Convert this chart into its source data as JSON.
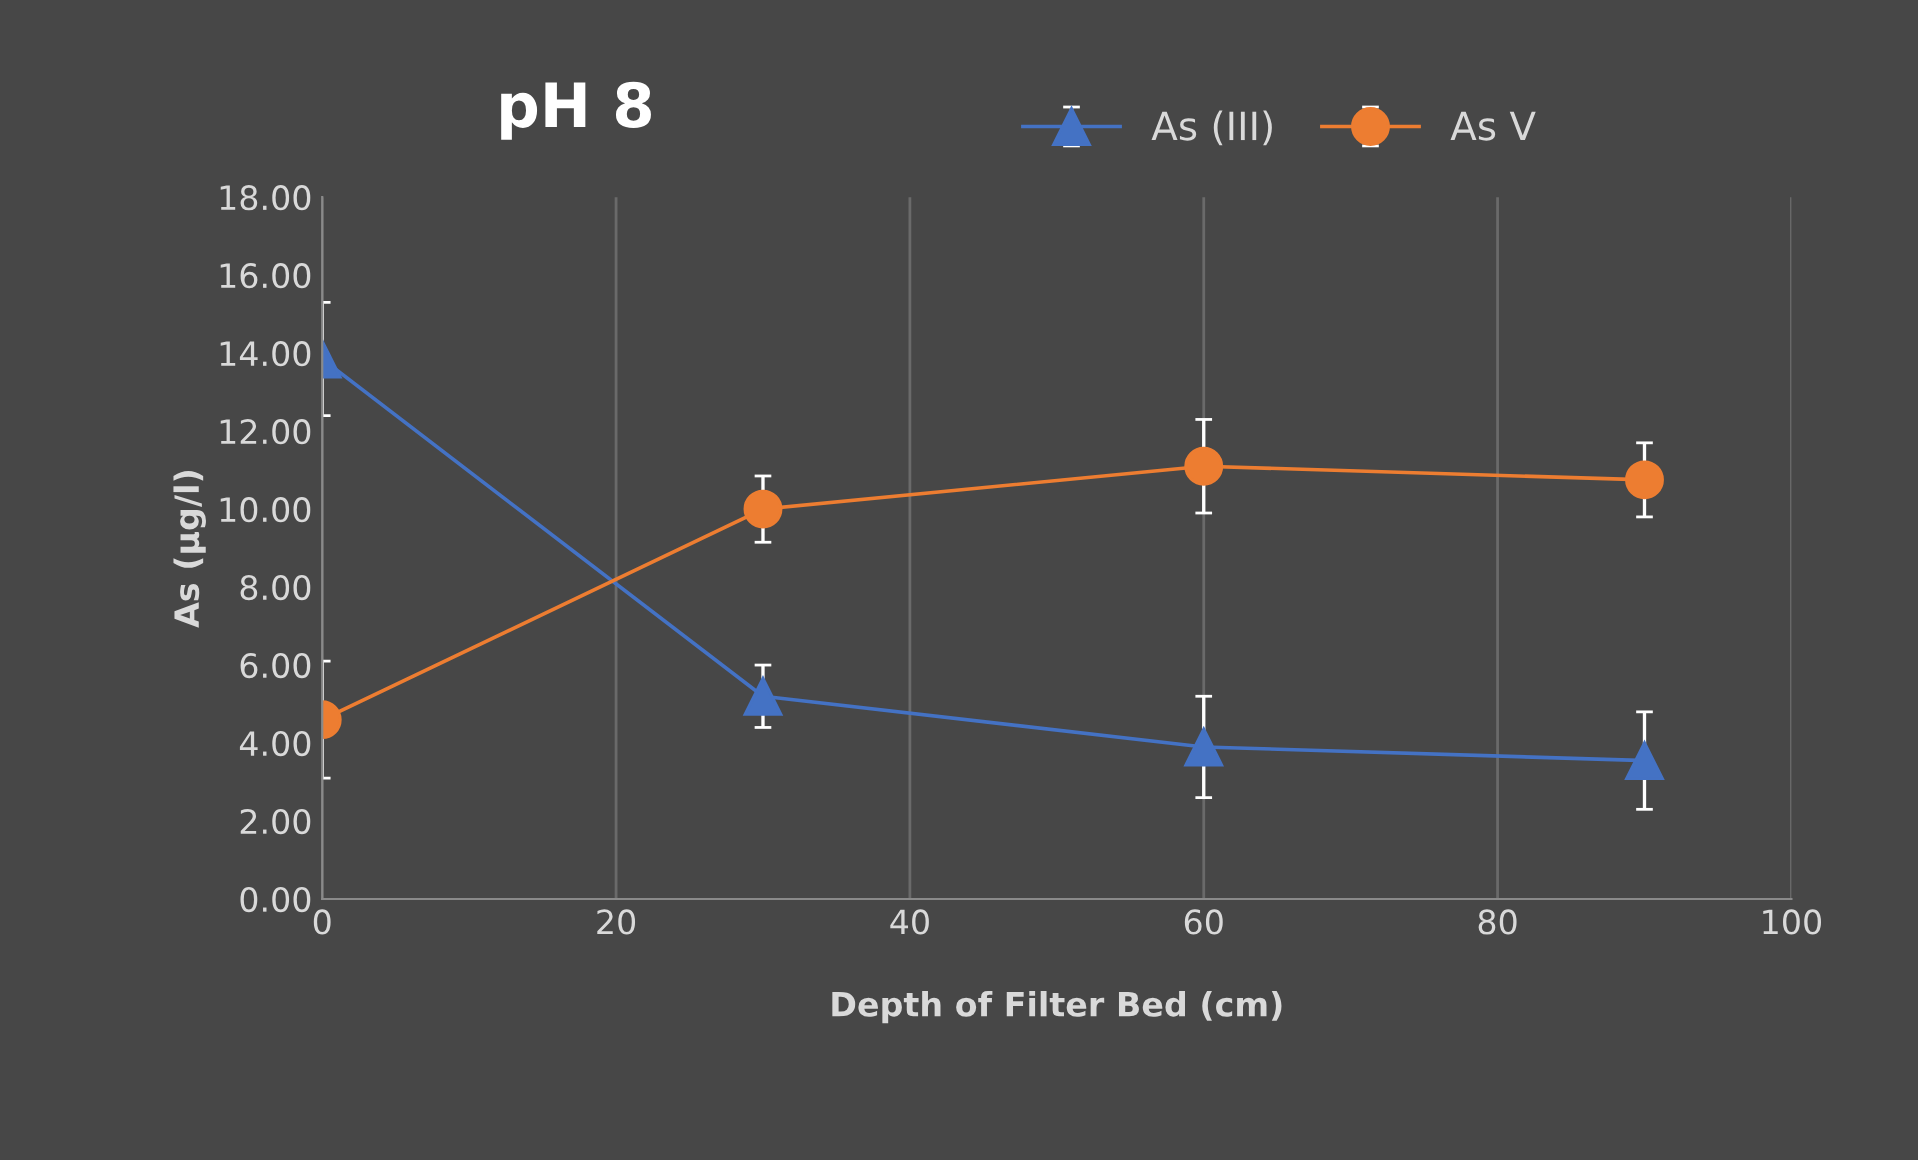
{
  "chart_data": {
    "type": "line",
    "title": "pH 8",
    "xlabel": "Depth of Filter Bed (cm)",
    "ylabel": "As (µg/l)",
    "x": [
      0,
      30,
      60,
      90
    ],
    "series": [
      {
        "name": "As (III)",
        "color": "#4472c4",
        "marker": "triangle",
        "values": [
          13.85,
          5.2,
          3.9,
          3.55
        ],
        "errors": [
          1.45,
          0.8,
          1.3,
          1.25
        ]
      },
      {
        "name": "As V",
        "color": "#ed7d31",
        "marker": "circle",
        "values": [
          4.6,
          10.0,
          11.1,
          10.75
        ],
        "errors": [
          1.5,
          0.85,
          1.2,
          0.95
        ]
      }
    ],
    "xlim": [
      0,
      100
    ],
    "xticks": [
      0,
      20,
      40,
      60,
      80,
      100
    ],
    "ylim": [
      0,
      18
    ],
    "yticks": [
      {
        "value": 0,
        "label": "0.00"
      },
      {
        "value": 2,
        "label": "2.00"
      },
      {
        "value": 4,
        "label": "4.00"
      },
      {
        "value": 6,
        "label": "6.00"
      },
      {
        "value": 8,
        "label": "8.00"
      },
      {
        "value": 10,
        "label": "10.00"
      },
      {
        "value": 12,
        "label": "12.00"
      },
      {
        "value": 14,
        "label": "14.00"
      },
      {
        "value": 16,
        "label": "16.00"
      },
      {
        "value": 18,
        "label": "18.00"
      }
    ],
    "grid": "x",
    "legend": "top right",
    "line_style": "solid"
  }
}
